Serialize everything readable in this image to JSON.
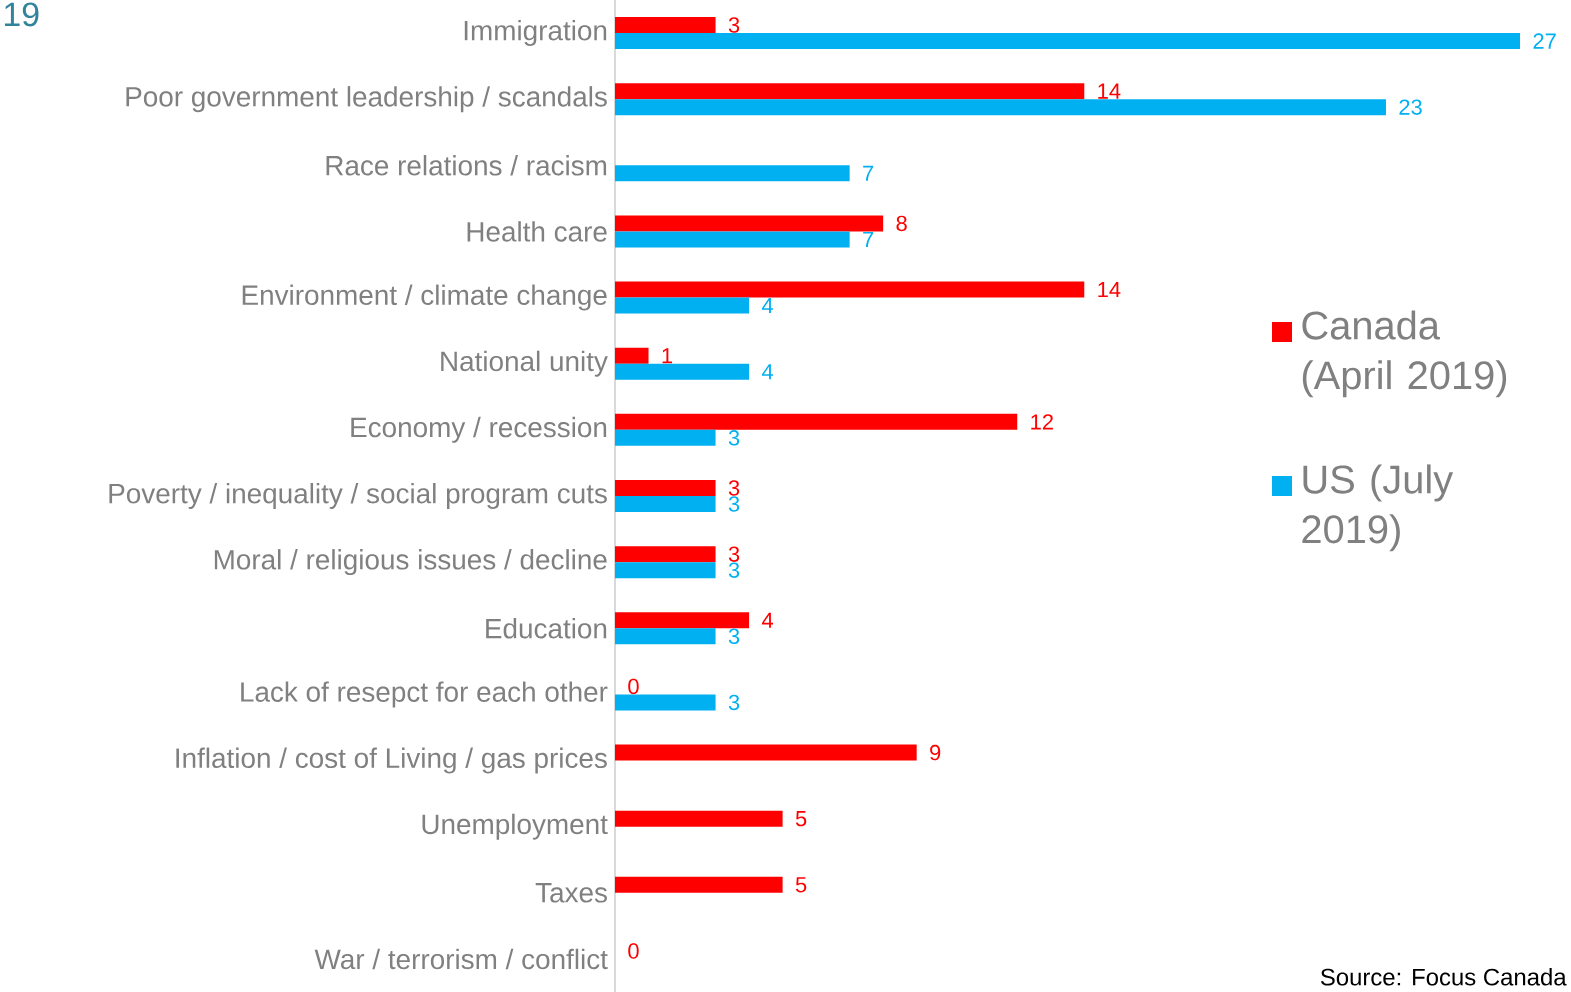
{
  "chart_data": {
    "type": "bar",
    "orientation": "horizontal",
    "title": "19",
    "categories": [
      "Immigration",
      "Poor government leadership / scandals",
      "Race relations / racism",
      "Health care",
      "Environment / climate change",
      "National unity",
      "Economy / recession",
      "Poverty / inequality / social program cuts",
      "Moral / religious issues / decline",
      "Education",
      "Lack of resepct for each other",
      "Inflation / cost of Living / gas prices",
      "Unemployment",
      "Taxes",
      "War / terrorism / conflict"
    ],
    "series": [
      {
        "name": "Canada (April 2019)",
        "color": "#ff0000",
        "values": [
          3,
          14,
          null,
          8,
          14,
          1,
          12,
          3,
          3,
          4,
          0,
          9,
          5,
          5,
          0
        ]
      },
      {
        "name": "US (July 2019)",
        "color": "#00b0f0",
        "values": [
          27,
          23,
          7,
          7,
          4,
          4,
          3,
          3,
          3,
          3,
          3,
          null,
          null,
          null,
          null
        ]
      }
    ],
    "data_labels": true,
    "legend": "right",
    "annotations": [
      "Source: Focus Canada"
    ]
  }
}
